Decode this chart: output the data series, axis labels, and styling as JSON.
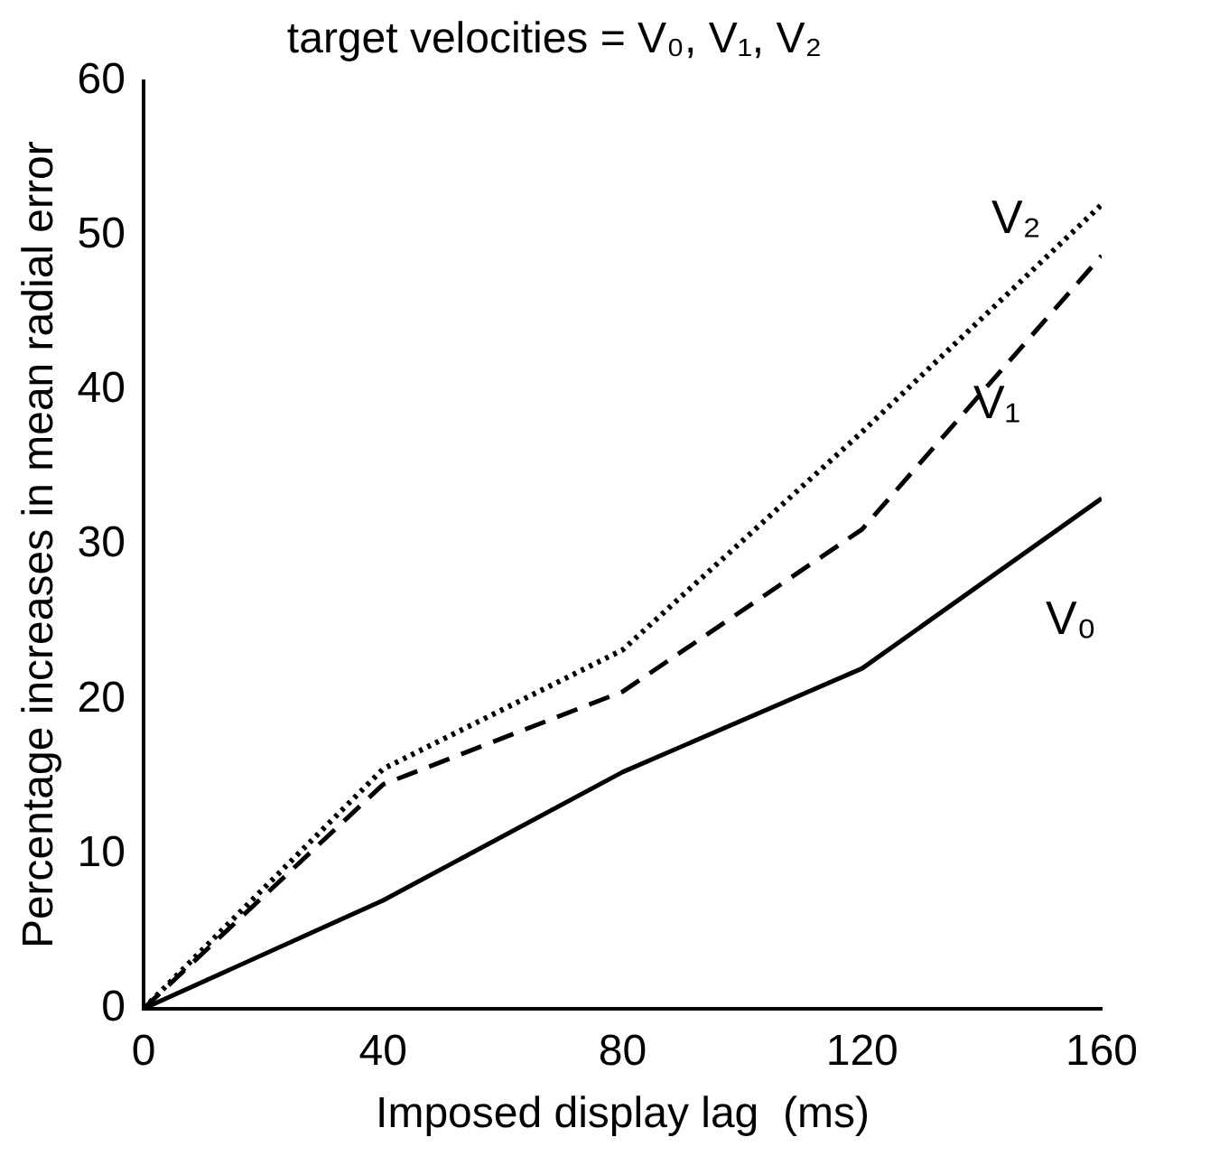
{
  "chart_data": {
    "type": "line",
    "title": "target velocities = V₀, V₁, V₂",
    "xlabel": "Imposed display lag  (ms)",
    "ylabel": "Percentage increases in mean radial error",
    "x": [
      0,
      40,
      80,
      120,
      160
    ],
    "series": [
      {
        "name": "V₀",
        "color": "#000000",
        "line_style": "solid",
        "values": [
          0,
          7,
          15.3,
          22,
          33
        ]
      },
      {
        "name": "V₁",
        "color": "#000000",
        "line_style": "dashed",
        "values": [
          0,
          14.5,
          20.5,
          31,
          48.7
        ]
      },
      {
        "name": "V₂",
        "color": "#000000",
        "line_style": "dotted",
        "values": [
          0,
          15.5,
          23.2,
          37.3,
          52
        ]
      }
    ],
    "xlim": [
      0,
      160
    ],
    "xticks": [
      0,
      40,
      80,
      120,
      160
    ],
    "ylim": [
      0,
      60
    ],
    "yticks": [
      0,
      10,
      20,
      30,
      40,
      50,
      60
    ],
    "grid": false,
    "legend": false,
    "marker": "none"
  }
}
